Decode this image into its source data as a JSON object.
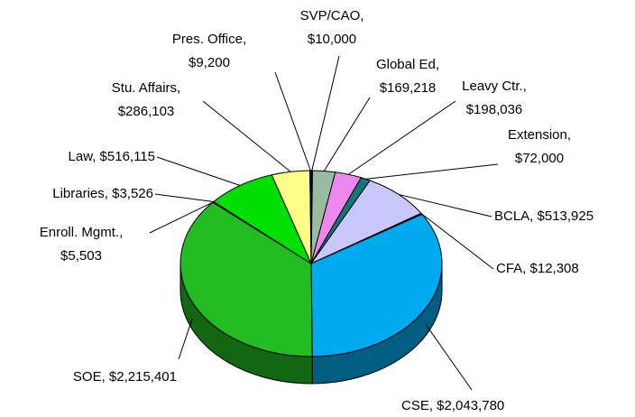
{
  "chart_data": {
    "type": "pie3d",
    "labels": [
      "SVP/CAO, $10,000",
      "Global Ed, $169,218",
      "Leavy Ctr., $198,036",
      "Extension, $72,000",
      "BCLA, $513,925",
      "CFA, $12,308",
      "CSE, $2,043,780",
      "SOE, $2,215,401",
      "Enroll. Mgmt., $5,503",
      "Libraries, $3,526",
      "Law, $516,115",
      "Stu. Affairs, $286,103",
      "Pres. Office, $9,200"
    ],
    "values": [
      10000,
      169218,
      198036,
      72000,
      513925,
      12308,
      2043780,
      2215401,
      5503,
      3526,
      516115,
      286103,
      9200
    ],
    "colors": [
      "#1a1a40",
      "#99bba0",
      "#ee88ee",
      "#117777",
      "#c8c8ff",
      "#000080",
      "#00aaee",
      "#22bb22",
      "#003300",
      "#004400",
      "#00e000",
      "#ffff88",
      "#111111"
    ]
  }
}
